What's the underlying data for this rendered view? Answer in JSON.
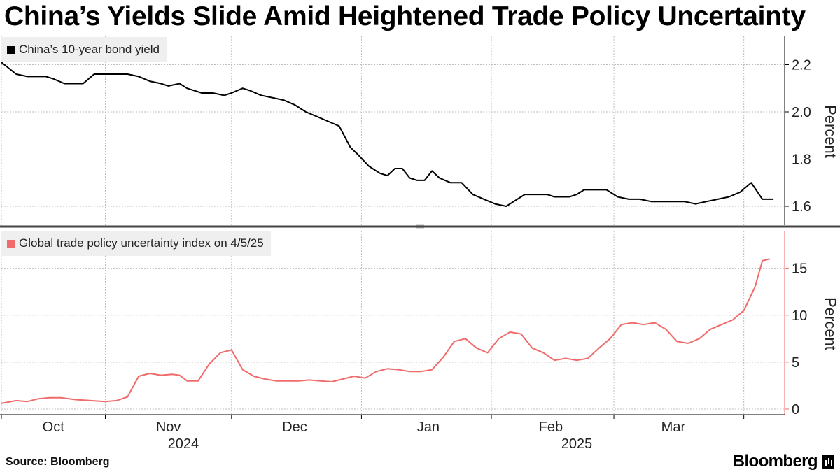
{
  "header": {
    "title": "China’s Yields Slide Amid Heightened Trade Policy Uncertainty"
  },
  "footer": {
    "source": "Source: Bloomberg",
    "brand": "Bloomberg"
  },
  "colors": {
    "yield_line": "#000000",
    "uncertainty_line": "#f06b6b",
    "legend_bg": "#efefef",
    "grid": "#bdbdbd"
  },
  "chart_data": [
    {
      "type": "line",
      "title": "China’s 10-year bond yield",
      "ylabel": "Percent",
      "ylim": [
        1.52,
        2.32
      ],
      "yticks": [
        1.6,
        1.8,
        2.0,
        2.2
      ],
      "ytick_labels": [
        "1.6",
        "1.8",
        "2.0",
        "2.2"
      ],
      "xlim": [
        0,
        211
      ],
      "series": [
        {
          "name": "China’s 10-year bond yield",
          "color": "#000000",
          "x": [
            0,
            4,
            7,
            10,
            12,
            14,
            17,
            19,
            22,
            25,
            28,
            31,
            34,
            37,
            40,
            43,
            45,
            48,
            50,
            52,
            54,
            57,
            60,
            62,
            65,
            67,
            70,
            73,
            76,
            79,
            82,
            85,
            88,
            91,
            94,
            96,
            99,
            102,
            104,
            106,
            108,
            110,
            112,
            114,
            116,
            118,
            121,
            124,
            127,
            130,
            133,
            136,
            138,
            141,
            143,
            147,
            149,
            151,
            153,
            155,
            157,
            160,
            163,
            166,
            169,
            172,
            175,
            178,
            181,
            184,
            187,
            190,
            193,
            196,
            199,
            202,
            205,
            208
          ],
          "values": [
            2.21,
            2.16,
            2.15,
            2.15,
            2.15,
            2.14,
            2.12,
            2.12,
            2.12,
            2.16,
            2.16,
            2.16,
            2.16,
            2.15,
            2.13,
            2.12,
            2.11,
            2.12,
            2.1,
            2.09,
            2.08,
            2.08,
            2.07,
            2.08,
            2.1,
            2.09,
            2.07,
            2.06,
            2.05,
            2.03,
            2.0,
            1.98,
            1.96,
            1.94,
            1.85,
            1.82,
            1.77,
            1.74,
            1.73,
            1.76,
            1.76,
            1.72,
            1.71,
            1.71,
            1.75,
            1.72,
            1.7,
            1.7,
            1.65,
            1.63,
            1.61,
            1.6,
            1.62,
            1.65,
            1.65,
            1.65,
            1.64,
            1.64,
            1.64,
            1.65,
            1.67,
            1.67,
            1.67,
            1.64,
            1.63,
            1.63,
            1.62,
            1.62,
            1.62,
            1.62,
            1.61,
            1.62,
            1.63,
            1.64,
            1.66,
            1.7,
            1.63,
            1.63
          ]
        }
      ]
    },
    {
      "type": "line",
      "title": "Global trade policy uncertainty index on 4/5/25",
      "ylabel": "Percent",
      "ylim": [
        -0.6,
        19
      ],
      "yticks": [
        0,
        5,
        10,
        15
      ],
      "ytick_labels": [
        "0",
        "5",
        "10",
        "15"
      ],
      "xlim": [
        0,
        211
      ],
      "x_ticks": [
        {
          "label": "Oct",
          "x": 14
        },
        {
          "label": "Nov",
          "x": 45
        },
        {
          "label": "Dec",
          "x": 79
        },
        {
          "label": "Jan",
          "x": 115
        },
        {
          "label": "Feb",
          "x": 148
        },
        {
          "label": "Mar",
          "x": 181
        }
      ],
      "x_gridlines": [
        0,
        28,
        62,
        97,
        132,
        165,
        200
      ],
      "year_labels": [
        {
          "label": "2024",
          "x": 49
        },
        {
          "label": "2025",
          "x": 155
        }
      ],
      "series": [
        {
          "name": "Global trade policy uncertainty index on 4/5/25",
          "color": "#f06b6b",
          "x": [
            0,
            4,
            7,
            10,
            13,
            16,
            20,
            24,
            28,
            31,
            34,
            37,
            40,
            43,
            46,
            48,
            50,
            53,
            56,
            59,
            62,
            65,
            68,
            71,
            74,
            77,
            80,
            83,
            86,
            89,
            92,
            95,
            98,
            101,
            104,
            107,
            110,
            113,
            116,
            119,
            122,
            125,
            128,
            131,
            134,
            137,
            140,
            143,
            146,
            149,
            152,
            155,
            158,
            161,
            164,
            167,
            170,
            173,
            176,
            179,
            182,
            185,
            188,
            191,
            194,
            197,
            200,
            203,
            205,
            207
          ],
          "values": [
            0.6,
            0.9,
            0.8,
            1.1,
            1.2,
            1.2,
            1.0,
            0.9,
            0.8,
            0.9,
            1.3,
            3.5,
            3.8,
            3.6,
            3.7,
            3.6,
            3.0,
            3.0,
            4.8,
            6.0,
            6.3,
            4.2,
            3.5,
            3.2,
            3.0,
            3.0,
            3.0,
            3.1,
            3.0,
            2.9,
            3.2,
            3.5,
            3.3,
            4.0,
            4.3,
            4.2,
            4.0,
            4.0,
            4.2,
            5.5,
            7.2,
            7.5,
            6.5,
            6.0,
            7.5,
            8.2,
            8.0,
            6.5,
            6.0,
            5.2,
            5.4,
            5.2,
            5.4,
            6.5,
            7.5,
            9.0,
            9.2,
            9.0,
            9.2,
            8.5,
            7.2,
            7.0,
            7.5,
            8.5,
            9.0,
            9.5,
            10.5,
            13.0,
            15.8,
            16.0
          ]
        }
      ]
    }
  ]
}
